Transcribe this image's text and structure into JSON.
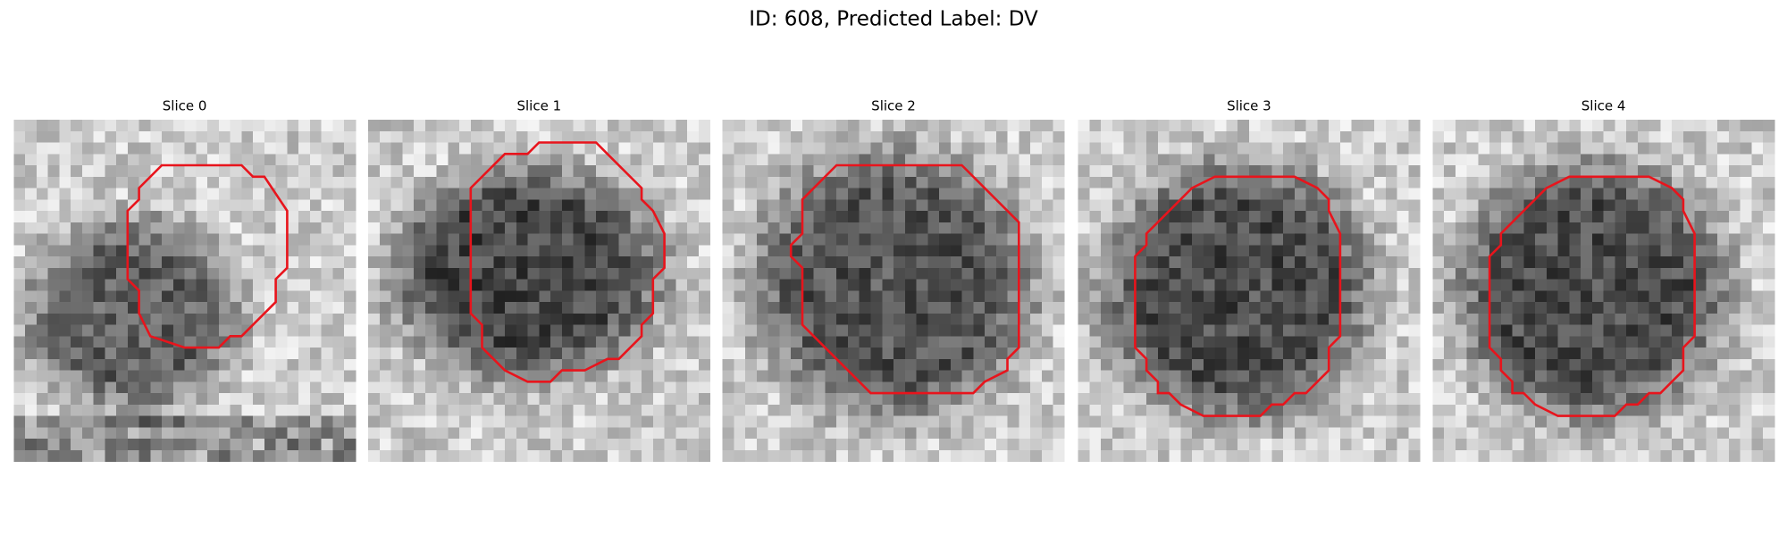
{
  "title": "ID: 608, Predicted Label: DV",
  "panels": [
    {
      "title": "Slice 0"
    },
    {
      "title": "Slice 1"
    },
    {
      "title": "Slice 2"
    },
    {
      "title": "Slice 3"
    },
    {
      "title": "Slice 4"
    }
  ]
}
